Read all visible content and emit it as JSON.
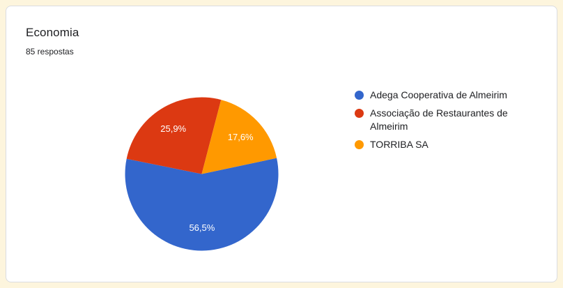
{
  "page": {
    "background_color": "#fdf5dd",
    "card_background": "#ffffff",
    "card_border_color": "#dadce0"
  },
  "header": {
    "title": "Economia",
    "responses_label": "85 respostas"
  },
  "chart_data": {
    "type": "pie",
    "title": "Economia",
    "subtitle": "85 respostas",
    "legend_position": "right",
    "start_angle_deg": 78,
    "label_color": "#ffffff",
    "slices": [
      {
        "label": "Adega Cooperativa de Almeirim",
        "value_pct": 56.5,
        "display_pct": "56,5%",
        "color": "#3366cc"
      },
      {
        "label": "Associação de Restaurantes de Almeirim",
        "value_pct": 25.9,
        "display_pct": "25,9%",
        "color": "#dc3912"
      },
      {
        "label": "TORRIBA SA",
        "value_pct": 17.6,
        "display_pct": "17,6%",
        "color": "#ff9900"
      }
    ]
  }
}
